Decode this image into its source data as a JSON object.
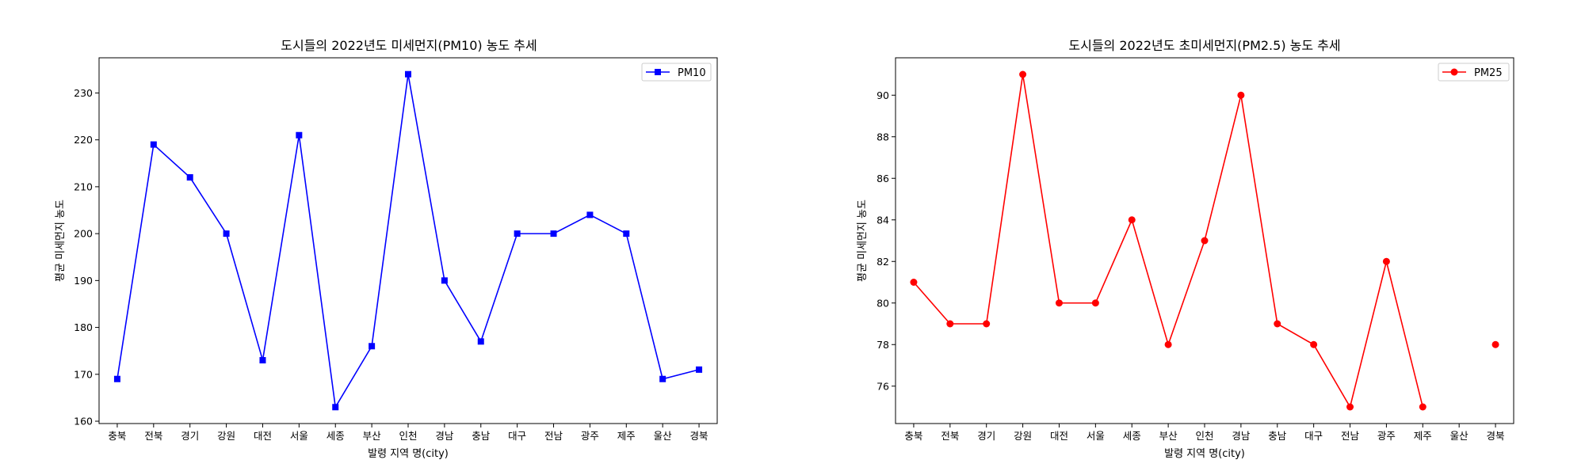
{
  "chart_data": [
    {
      "type": "line",
      "title": "도시들의 2022년도 미세먼지(PM10) 농도 추세",
      "xlabel": "발령 지역 명(city)",
      "ylabel": "평균 미세먼지 농도",
      "categories": [
        "충북",
        "전북",
        "경기",
        "강원",
        "대전",
        "서울",
        "세종",
        "부산",
        "인천",
        "경남",
        "충남",
        "대구",
        "전남",
        "광주",
        "제주",
        "울산",
        "경북"
      ],
      "series": [
        {
          "name": "PM10",
          "color": "#0000ff",
          "marker": "square",
          "values": [
            169,
            219,
            212,
            200,
            173,
            221,
            163,
            176,
            234,
            190,
            177,
            200,
            200,
            204,
            200,
            169,
            171
          ]
        }
      ],
      "ylim": [
        159.5,
        237.5
      ],
      "yticks": [
        160,
        170,
        180,
        190,
        200,
        210,
        220,
        230
      ],
      "grid": false,
      "legend": "top-right"
    },
    {
      "type": "line",
      "title": "도시들의 2022년도 초미세먼지(PM2.5) 농도 추세",
      "xlabel": "발령 지역 명(city)",
      "ylabel": "평균 미세먼지 농도",
      "categories": [
        "충북",
        "전북",
        "경기",
        "강원",
        "대전",
        "서울",
        "세종",
        "부산",
        "인천",
        "경남",
        "충남",
        "대구",
        "전남",
        "광주",
        "제주",
        "울산",
        "경북"
      ],
      "series": [
        {
          "name": "PM25",
          "color": "#ff0000",
          "marker": "circle",
          "values": [
            81,
            79,
            79,
            91,
            80,
            80,
            84,
            78,
            83,
            90,
            79,
            78,
            75,
            82,
            75,
            null,
            78
          ]
        }
      ],
      "ylim": [
        74.2,
        91.8
      ],
      "yticks": [
        76,
        78,
        80,
        82,
        84,
        86,
        88,
        90
      ],
      "grid": false,
      "legend": "top-right"
    }
  ]
}
